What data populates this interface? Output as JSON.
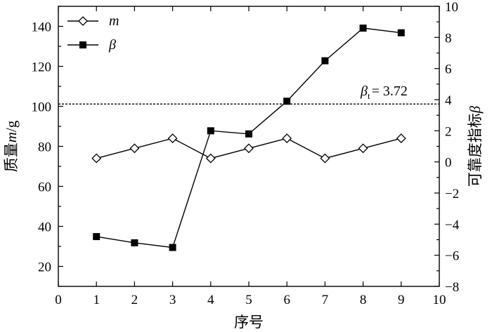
{
  "chart_data": {
    "type": "line",
    "xlabel": "序号",
    "ylabel_left": "质量",
    "ylabel_left_var": "m",
    "ylabel_left_unit": "/g",
    "ylabel_right": "可靠度指标",
    "ylabel_right_var": "β",
    "xlim": [
      0,
      10
    ],
    "ylim_left": [
      10,
      150
    ],
    "ylim_right": [
      -8,
      10
    ],
    "x_ticks": [
      0,
      1,
      2,
      3,
      4,
      5,
      6,
      7,
      8,
      9,
      10
    ],
    "y_left_ticks": [
      20,
      40,
      60,
      80,
      100,
      120,
      140
    ],
    "y_right_ticks": [
      -8,
      -6,
      -4,
      -2,
      0,
      2,
      4,
      6,
      8,
      10
    ],
    "legend_position": "top-left",
    "series": [
      {
        "name": "m",
        "axis": "left",
        "marker": "open-diamond",
        "x": [
          1,
          2,
          3,
          4,
          5,
          6,
          7,
          8,
          9
        ],
        "values": [
          74,
          79,
          84,
          74,
          79,
          84,
          74,
          79,
          84
        ]
      },
      {
        "name": "β",
        "axis": "right",
        "marker": "filled-square",
        "x": [
          1,
          2,
          3,
          4,
          5,
          6,
          7,
          8,
          9
        ],
        "values": [
          -4.8,
          -5.2,
          -5.5,
          2.0,
          1.8,
          3.9,
          6.5,
          8.6,
          8.3
        ]
      }
    ],
    "reference_line": {
      "axis": "right",
      "value": 3.72,
      "label_symbol": "β",
      "label_subscript": "t",
      "label_value": "= 3.72"
    }
  }
}
